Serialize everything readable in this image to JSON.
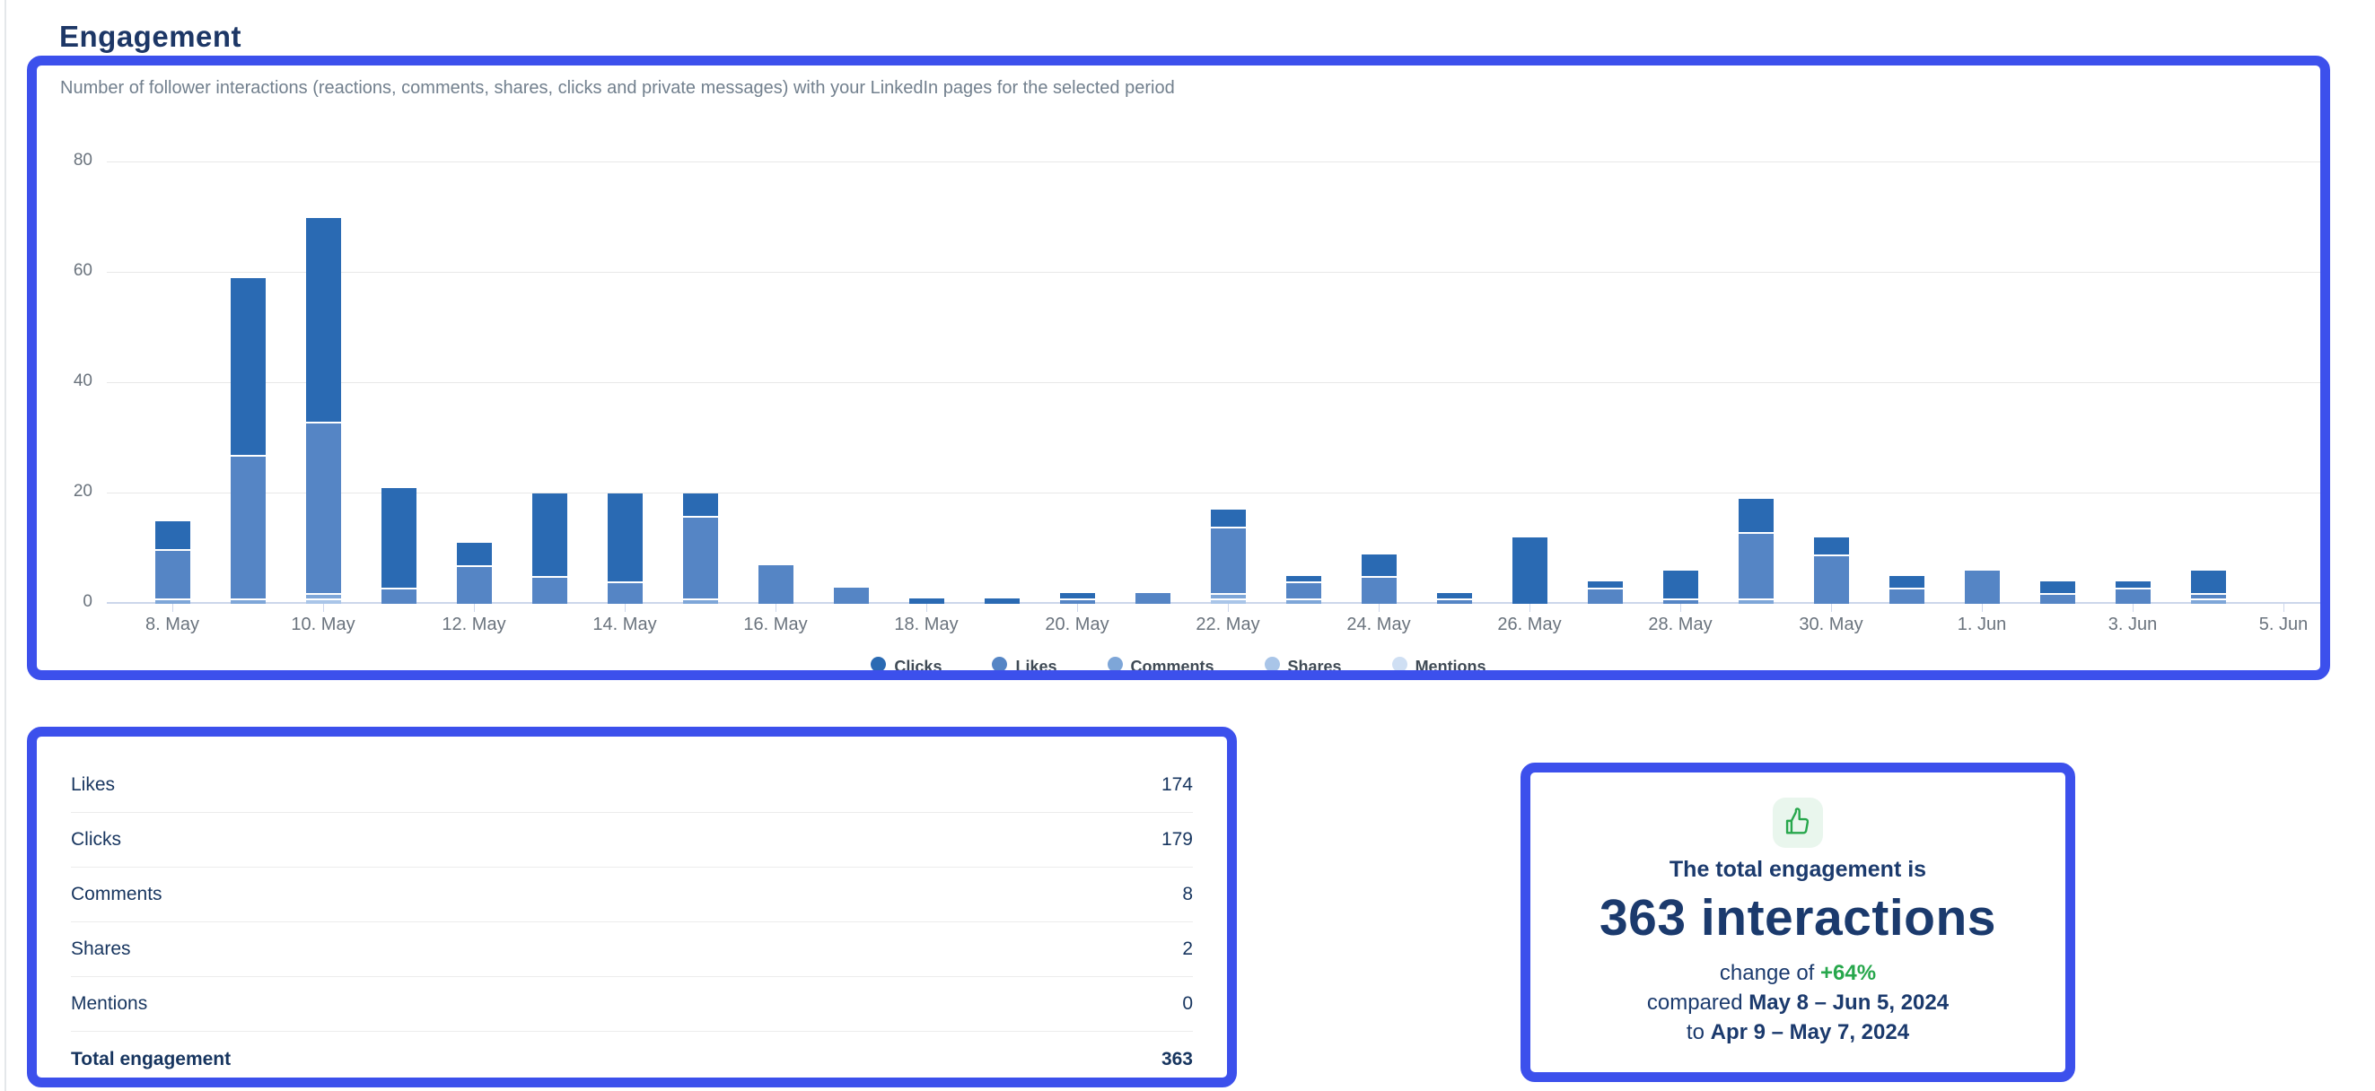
{
  "page": {
    "title": "Engagement"
  },
  "colors": {
    "panel_border": "#3c50ec",
    "navy_text": "#1b3a6d",
    "subtitle_gray": "#72808e",
    "positive_green": "#27a74c",
    "icon_green_bg": "#e9f6ed"
  },
  "chart_panel": {
    "subtitle": "Number of follower interactions (reactions, comments, shares, clicks and private messages) with your LinkedIn pages for the selected period",
    "chart_data": {
      "type": "bar",
      "stacked": true,
      "categories": [
        "8. May",
        "9. May",
        "10. May",
        "11. May",
        "12. May",
        "13. May",
        "14. May",
        "15. May",
        "16. May",
        "17. May",
        "18. May",
        "19. May",
        "20. May",
        "21. May",
        "22. May",
        "23. May",
        "24. May",
        "25. May",
        "26. May",
        "27. May",
        "28. May",
        "29. May",
        "30. May",
        "31. May",
        "1. Jun",
        "2. Jun",
        "3. Jun",
        "4. Jun",
        "5. Jun"
      ],
      "x_tick_every": 2,
      "series": [
        {
          "name": "Clicks",
          "color": "#2a6ab3",
          "values": [
            5,
            32,
            37,
            18,
            4,
            15,
            16,
            4,
            0,
            0,
            1,
            1,
            1,
            0,
            3,
            1,
            4,
            1,
            12,
            1,
            5,
            6,
            3,
            2,
            0,
            2,
            1,
            4,
            0
          ]
        },
        {
          "name": "Likes",
          "color": "#5585c5",
          "values": [
            9,
            26,
            31,
            3,
            7,
            5,
            4,
            15,
            7,
            3,
            0,
            0,
            1,
            2,
            12,
            3,
            5,
            1,
            0,
            3,
            1,
            12,
            9,
            3,
            6,
            2,
            3,
            1,
            0
          ]
        },
        {
          "name": "Comments",
          "color": "#7ea6d8",
          "values": [
            1,
            1,
            1,
            0,
            0,
            0,
            0,
            1,
            0,
            0,
            0,
            0,
            0,
            0,
            1,
            1,
            0,
            0,
            0,
            0,
            0,
            1,
            0,
            0,
            0,
            0,
            0,
            1,
            0
          ]
        },
        {
          "name": "Shares",
          "color": "#a9c5e8",
          "values": [
            0,
            0,
            1,
            0,
            0,
            0,
            0,
            0,
            0,
            0,
            0,
            0,
            0,
            0,
            1,
            0,
            0,
            0,
            0,
            0,
            0,
            0,
            0,
            0,
            0,
            0,
            0,
            0,
            0
          ]
        },
        {
          "name": "Mentions",
          "color": "#cfdff3",
          "values": [
            0,
            0,
            0,
            0,
            0,
            0,
            0,
            0,
            0,
            0,
            0,
            0,
            0,
            0,
            0,
            0,
            0,
            0,
            0,
            0,
            0,
            0,
            0,
            0,
            0,
            0,
            0,
            0,
            0
          ]
        }
      ],
      "ylim": [
        0,
        80
      ],
      "yticks": [
        0,
        20,
        40,
        60,
        80
      ],
      "grid": true,
      "legend_position": "bottom",
      "stack_order_bottom_to_top": [
        "Mentions",
        "Shares",
        "Comments",
        "Likes",
        "Clicks"
      ]
    }
  },
  "summary_table": {
    "rows": [
      {
        "label": "Likes",
        "value": "174",
        "total": false
      },
      {
        "label": "Clicks",
        "value": "179",
        "total": false
      },
      {
        "label": "Comments",
        "value": "8",
        "total": false
      },
      {
        "label": "Shares",
        "value": "2",
        "total": false
      },
      {
        "label": "Mentions",
        "value": "0",
        "total": false
      },
      {
        "label": "Total engagement",
        "value": "363",
        "total": true
      }
    ]
  },
  "total_card": {
    "icon": "thumbs-up-icon",
    "intro": "The total engagement is",
    "headline": "363 interactions",
    "change_prefix": "change of",
    "change_value": "+64%",
    "compare_line1_prefix": "compared",
    "compare_line1_bold": "May 8 – Jun 5, 2024",
    "compare_line2_prefix": "to",
    "compare_line2_bold": "Apr 9 – May 7, 2024"
  }
}
